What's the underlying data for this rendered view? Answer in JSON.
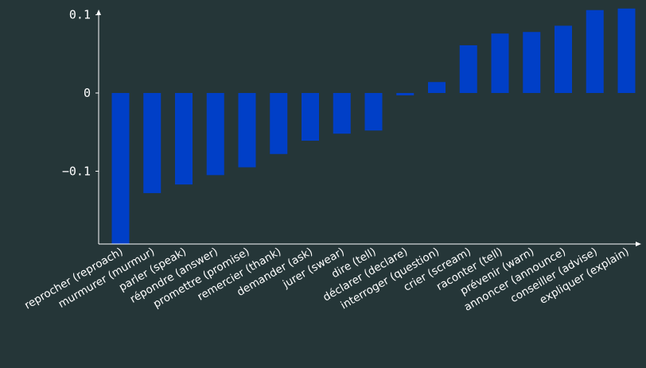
{
  "chart_data": {
    "type": "bar",
    "title": "",
    "xlabel": "",
    "ylabel": "",
    "categories": [
      "reprocher (reproach)",
      "murmurer (murmur)",
      "parler (speak)",
      "répondre (answer)",
      "promettre (promise)",
      "remercier (thank)",
      "demander (ask)",
      "jurer (swear)",
      "dire (tell)",
      "déclarer (declare)",
      "interroger (question)",
      "crier (scream)",
      "raconter (tell)",
      "prévenir (warn)",
      "annoncer (announce)",
      "conseiller (advise)",
      "expliquer (explain)"
    ],
    "values": [
      -0.193,
      -0.128,
      -0.117,
      -0.105,
      -0.095,
      -0.078,
      -0.061,
      -0.052,
      -0.048,
      -0.003,
      0.014,
      0.061,
      0.076,
      0.078,
      0.086,
      0.106,
      0.108
    ],
    "ylim": [
      -0.193,
      0.108
    ],
    "yticks": [
      -0.1,
      0,
      0.1
    ],
    "ytick_labels": [
      "−0.1",
      "0",
      "0.1"
    ],
    "bar_color": "#003fc7",
    "axis_color": "#ffffff",
    "background": "#253638",
    "grid": false
  }
}
